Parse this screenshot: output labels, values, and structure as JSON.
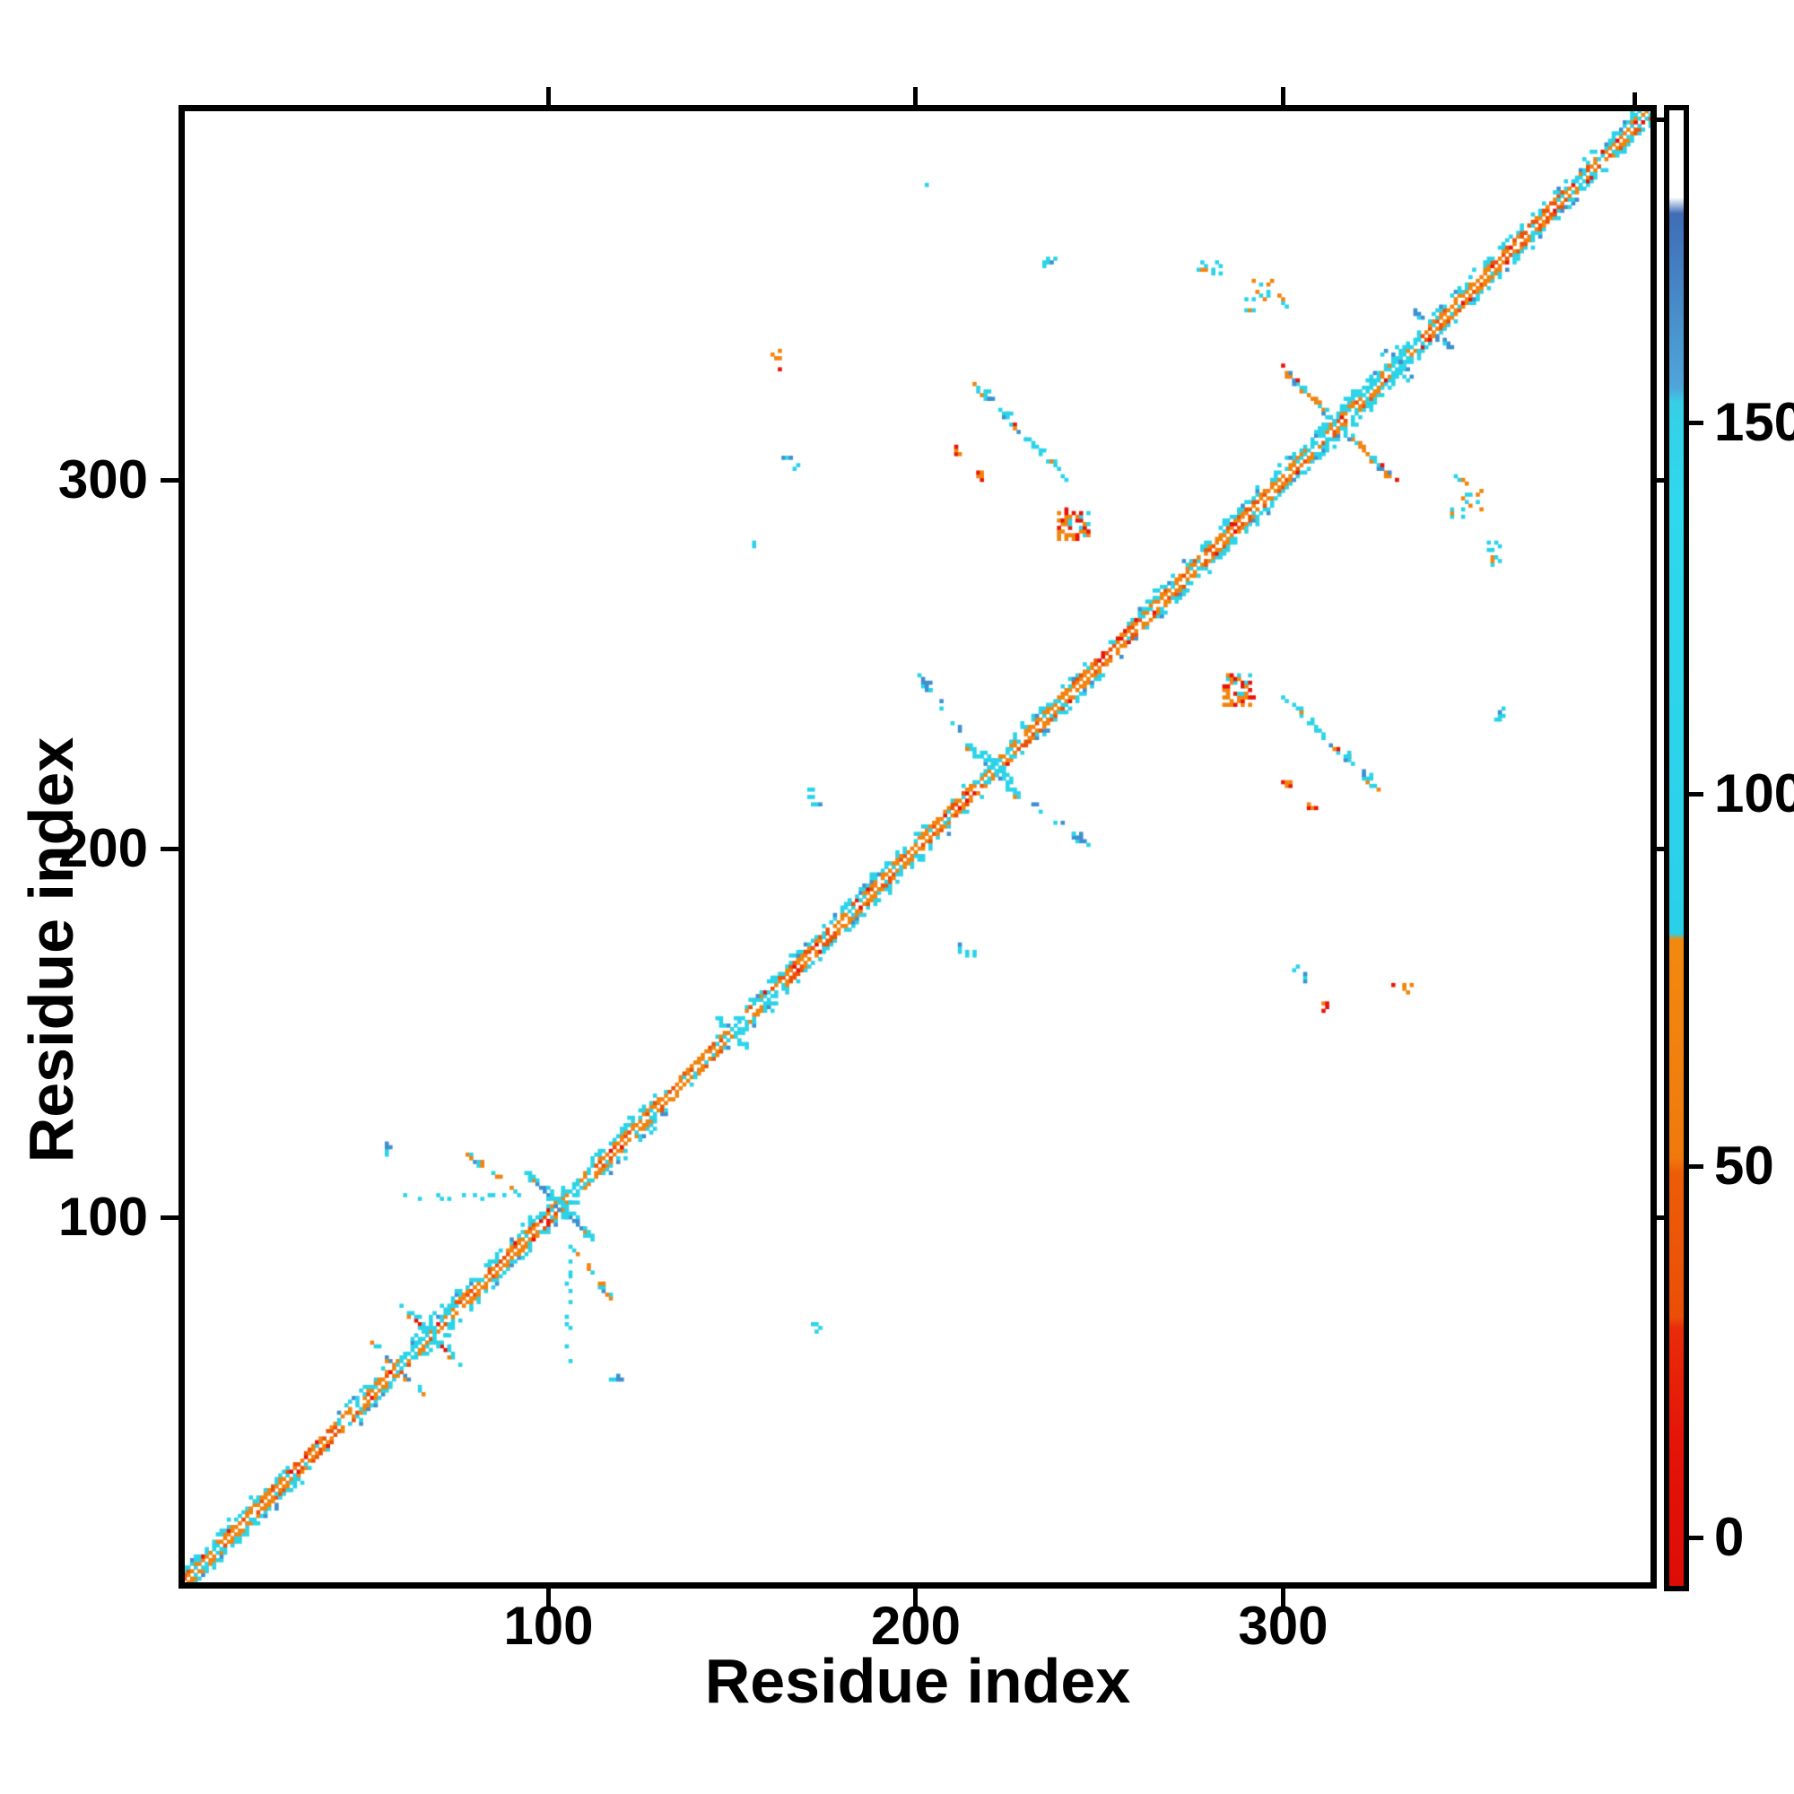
{
  "figure": {
    "background": "#ffffff"
  },
  "chart_data": {
    "type": "heatmap",
    "title": "",
    "xlabel": "Residue index",
    "ylabel": "Residue index",
    "x_range": [
      1,
      400
    ],
    "y_range": [
      1,
      400
    ],
    "grid": false,
    "x_ticks": [
      {
        "value": 100,
        "label": "100"
      },
      {
        "value": 200,
        "label": "200"
      },
      {
        "value": 300,
        "label": "300"
      }
    ],
    "y_ticks": [
      {
        "value": 100,
        "label": "100"
      },
      {
        "value": 200,
        "label": "200"
      },
      {
        "value": 300,
        "label": "300"
      }
    ],
    "colorbar": {
      "position": "right",
      "vmin": -6.5,
      "vmax": 192,
      "ticks": [
        {
          "value": 0,
          "label": "0"
        },
        {
          "value": 50,
          "label": "50"
        },
        {
          "value": 100,
          "label": "100"
        },
        {
          "value": 150,
          "label": "150"
        }
      ],
      "gradient_stops": [
        [
          0.0,
          "#dd0c06"
        ],
        [
          0.1,
          "#e51408"
        ],
        [
          0.175,
          "#e92c09"
        ],
        [
          0.182,
          "#eb4e07"
        ],
        [
          0.28,
          "#ec5d08"
        ],
        [
          0.29,
          "#f0790c"
        ],
        [
          0.438,
          "#f2890f"
        ],
        [
          0.442,
          "#2ad0e8"
        ],
        [
          0.74,
          "#2fd8ec"
        ],
        [
          0.802,
          "#36cfe6"
        ],
        [
          0.812,
          "#4fa6da"
        ],
        [
          0.93,
          "#3f6db6"
        ],
        [
          0.941,
          "#ffffff"
        ],
        [
          1.0,
          "#ffffff"
        ]
      ]
    },
    "palette": {
      "red": "#e71309",
      "redOrange": "#ec5207",
      "orange": "#f1830e",
      "cyan": "#2bd3e8",
      "steel": "#3e8fd0"
    },
    "map": {
      "n_residues": 400,
      "diagonal_is_white": true,
      "diagonal_segments": [
        [
          1,
          14,
          "mix",
          "cyan"
        ],
        [
          14,
          30,
          "orange",
          "cyan"
        ],
        [
          30,
          44,
          "orangeRed",
          "sparse"
        ],
        [
          44,
          56,
          "orange",
          "cyan"
        ],
        [
          56,
          63,
          "mix",
          "none"
        ],
        [
          63,
          76,
          "cyanMix",
          "cyan"
        ],
        [
          76,
          96,
          "orange",
          "cyan"
        ],
        [
          96,
          102,
          "redMix",
          "cyan"
        ],
        [
          102,
          112,
          "cyanMix",
          "none"
        ],
        [
          112,
          130,
          "orange",
          "cyanWide"
        ],
        [
          130,
          148,
          "orange",
          "sparse"
        ],
        [
          148,
          164,
          "cyanMix",
          "cyan"
        ],
        [
          164,
          178,
          "orangeRed",
          "cyan"
        ],
        [
          178,
          190,
          "orange",
          "cyanWide"
        ],
        [
          190,
          205,
          "orange",
          "cyan"
        ],
        [
          205,
          216,
          "orangeRed",
          "sparse"
        ],
        [
          216,
          226,
          "cyanMix",
          "none"
        ],
        [
          226,
          248,
          "orange",
          "cyan"
        ],
        [
          248,
          262,
          "orangeRed",
          "sparse"
        ],
        [
          262,
          280,
          "orange",
          "cyan"
        ],
        [
          280,
          295,
          "orangeRed",
          "cyanWide"
        ],
        [
          295,
          305,
          "orange",
          "cyan"
        ],
        [
          305,
          322,
          "mix",
          "cyanWide"
        ],
        [
          322,
          338,
          "cyanMix",
          "cyan"
        ],
        [
          338,
          357,
          "orange",
          "cyan"
        ],
        [
          357,
          374,
          "orangeRed",
          "cyan"
        ],
        [
          374,
          400,
          "mix",
          "cyan"
        ]
      ],
      "near_styles": {
        "orange": {
          "orange": 0.62,
          "redOrange": 0.16,
          "red": 0.02,
          "cyan": 0.12,
          "skip": 0.08
        },
        "orangeRed": {
          "orange": 0.45,
          "redOrange": 0.28,
          "red": 0.12,
          "cyan": 0.08,
          "skip": 0.07
        },
        "redMix": {
          "orange": 0.35,
          "redOrange": 0.22,
          "red": 0.25,
          "cyan": 0.12,
          "skip": 0.06
        },
        "mix": {
          "orange": 0.38,
          "redOrange": 0.12,
          "red": 0.05,
          "cyan": 0.35,
          "skip": 0.1
        },
        "cyanMix": {
          "orange": 0.22,
          "redOrange": 0.06,
          "red": 0.04,
          "cyan": 0.58,
          "skip": 0.1
        }
      },
      "flank_styles": {
        "cyan": [
          0.55,
          0.28,
          0.04
        ],
        "cyanWide": [
          0.7,
          0.5,
          0.15
        ],
        "cyanSparse": [
          0.3,
          0.1,
          0.0
        ],
        "sparse": [
          0.12,
          0.04,
          0.0
        ],
        "none": [
          0.0,
          0.0,
          0.0
        ]
      },
      "crossing_styles": {
        "cyanblob": {
          "cyan": 0.62,
          "steel": 0.22,
          "orange": 0.13,
          "red": 0.03
        },
        "mixed": {
          "cyan": 0.38,
          "orange": 0.28,
          "steel": 0.24,
          "red": 0.1
        },
        "cyanline": {
          "cyan": 0.85,
          "steel": 0.05,
          "orange": 0.1
        },
        "steeldots": {
          "steel": 0.7,
          "cyan": 0.2,
          "orange": 0.05,
          "red": 0.05
        }
      },
      "crossings": [
        [
          59,
          7,
          "mixed"
        ],
        [
          68,
          8,
          "cyanblob"
        ],
        [
          103,
          9,
          "cyanblob"
        ],
        [
          150,
          4,
          "cyanline"
        ],
        [
          221,
          7,
          "cyanblob"
        ],
        [
          315,
          16,
          "mixed"
        ],
        [
          341,
          5,
          "steeldots"
        ]
      ],
      "features": [
        {
          "type": "arc",
          "from": [
            216,
            326
          ],
          "to": [
            241,
            300
          ],
          "density": 0.8,
          "thick": 0.45,
          "colors": {
            "cyan": 0.62,
            "steel": 0.18,
            "orange": 0.15,
            "red": 0.05
          },
          "mirror": true
        },
        {
          "type": "arc",
          "from": [
            201,
            247
          ],
          "to": [
            214,
            230
          ],
          "density": 0.5,
          "thick": 0.2,
          "colors": {
            "steel": 0.6,
            "cyan": 0.4
          },
          "mirror": true
        },
        {
          "type": "arc",
          "from": [
            78,
            117
          ],
          "to": [
            92,
            107
          ],
          "density": 0.6,
          "thick": 0.3,
          "colors": {
            "cyan": 0.55,
            "orange": 0.35,
            "steel": 0.1
          },
          "mirror": true
        },
        {
          "type": "blob",
          "center": [
            243,
            288
          ],
          "w": 9,
          "h": 9,
          "density": 0.5,
          "colors": {
            "orange": 0.55,
            "red": 0.28,
            "cyan": 0.17
          },
          "mirror": true
        },
        {
          "type": "blob",
          "center": [
            166,
            304
          ],
          "w": 5,
          "h": 5,
          "density": 0.4,
          "colors": {
            "steel": 0.65,
            "cyan": 0.35
          },
          "mirror": true
        },
        {
          "type": "blob",
          "center": [
            162,
            332
          ],
          "w": 3,
          "h": 7,
          "density": 0.5,
          "colors": {
            "orange": 0.7,
            "red": 0.3
          },
          "mirror": true
        },
        {
          "type": "blob",
          "center": [
            236,
            359
          ],
          "w": 5,
          "h": 3,
          "density": 0.55,
          "colors": {
            "cyan": 0.7,
            "steel": 0.3
          },
          "mirror": true
        },
        {
          "type": "blob",
          "center": [
            173,
            214
          ],
          "w": 5,
          "h": 5,
          "density": 0.32,
          "colors": {
            "steel": 0.55,
            "cyan": 0.45
          },
          "mirror": true
        },
        {
          "type": "blob",
          "center": [
            57,
            119
          ],
          "w": 2,
          "h": 4,
          "density": 0.7,
          "colors": {
            "steel": 0.6,
            "cyan": 0.4
          },
          "mirror": true
        },
        {
          "type": "blob",
          "center": [
            296,
            350
          ],
          "w": 12,
          "h": 9,
          "density": 0.14,
          "colors": {
            "cyan": 0.6,
            "orange": 0.4
          },
          "mirror": true
        },
        {
          "type": "hline",
          "j": 106,
          "i1": 58,
          "i2": 92,
          "density": 0.34,
          "colors": {
            "cyan": 0.8,
            "steel": 0.2
          },
          "mirror": true
        },
        {
          "type": "blob",
          "center": [
            312,
            157
          ],
          "w": 2,
          "h": 3,
          "density": 0.85,
          "colors": {
            "red": 0.6,
            "orange": 0.4
          },
          "mirror": false
        },
        {
          "type": "blob",
          "center": [
            173,
            70
          ],
          "w": 3,
          "h": 3,
          "density": 0.5,
          "colors": {
            "cyan": 1
          },
          "mirror": false
        },
        {
          "type": "blob",
          "center": [
            212,
            308
          ],
          "w": 2,
          "h": 3,
          "density": 0.8,
          "colors": {
            "red": 0.5,
            "orange": 0.5
          },
          "mirror": true
        },
        {
          "type": "blob",
          "center": [
            156,
            283
          ],
          "w": 1,
          "h": 2,
          "density": 1,
          "colors": {
            "cyan": 1
          },
          "mirror": false
        },
        {
          "type": "blob",
          "center": [
            330,
            334
          ],
          "w": 6,
          "h": 4,
          "density": 0.3,
          "colors": {
            "steel": 0.6,
            "cyan": 0.4
          },
          "mirror": true
        },
        {
          "type": "blob",
          "center": [
            218,
            301
          ],
          "w": 2,
          "h": 3,
          "density": 0.75,
          "colors": {
            "orange": 0.8,
            "red": 0.2
          },
          "mirror": true
        },
        {
          "type": "blob",
          "center": [
            280,
            358
          ],
          "w": 7,
          "h": 5,
          "density": 0.22,
          "colors": {
            "orange": 0.5,
            "cyan": 0.5
          },
          "mirror": true
        },
        {
          "type": "blob",
          "center": [
            203,
            380
          ],
          "w": 1,
          "h": 1,
          "density": 1,
          "colors": {
            "cyan": 1
          },
          "mirror": false
        }
      ]
    }
  }
}
